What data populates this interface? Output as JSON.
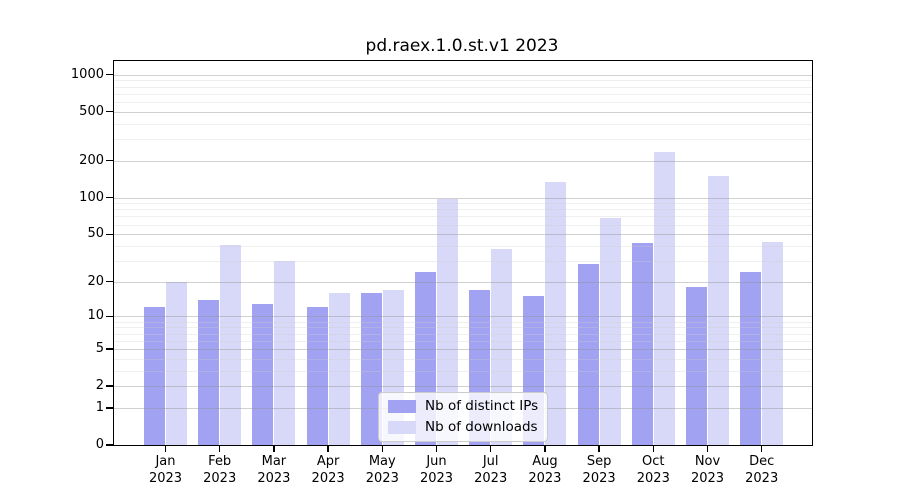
{
  "chart_data": {
    "type": "bar",
    "title": "pd.raex.1.0.st.v1 2023",
    "categories": [
      {
        "month": "Jan",
        "year": "2023"
      },
      {
        "month": "Feb",
        "year": "2023"
      },
      {
        "month": "Mar",
        "year": "2023"
      },
      {
        "month": "Apr",
        "year": "2023"
      },
      {
        "month": "May",
        "year": "2023"
      },
      {
        "month": "Jun",
        "year": "2023"
      },
      {
        "month": "Jul",
        "year": "2023"
      },
      {
        "month": "Aug",
        "year": "2023"
      },
      {
        "month": "Sep",
        "year": "2023"
      },
      {
        "month": "Oct",
        "year": "2023"
      },
      {
        "month": "Nov",
        "year": "2023"
      },
      {
        "month": "Dec",
        "year": "2023"
      }
    ],
    "series": [
      {
        "name": "Nb of distinct IPs",
        "color": "#a2a2f2",
        "values": [
          12,
          14,
          13,
          12,
          16,
          24,
          17,
          15,
          28,
          42,
          18,
          24
        ]
      },
      {
        "name": "Nb of downloads",
        "color": "#d8d8f8",
        "values": [
          20,
          41,
          30,
          16,
          17,
          98,
          38,
          135,
          68,
          235,
          150,
          43
        ]
      }
    ],
    "xlabel": "",
    "ylabel": "",
    "yscale": "log1p",
    "ylim": [
      0,
      1290
    ],
    "yticks": [
      1000,
      500,
      200,
      100,
      50,
      20,
      10,
      5,
      2,
      1,
      0
    ],
    "yminor_ticks": [
      3,
      4,
      6,
      7,
      8,
      9,
      30,
      40,
      60,
      70,
      80,
      90,
      300,
      400,
      600,
      700,
      800,
      900
    ],
    "grid": true,
    "legend_position": "lower center"
  }
}
